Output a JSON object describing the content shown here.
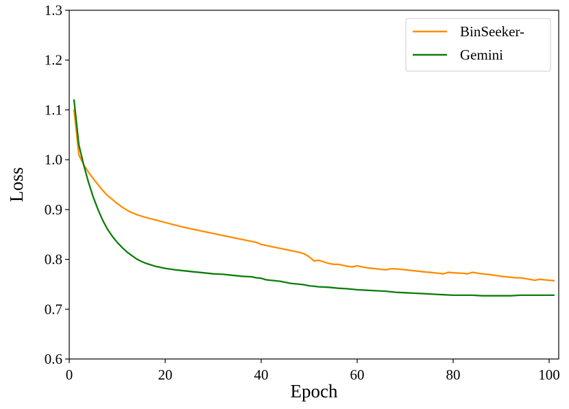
{
  "chart_data": {
    "type": "line",
    "title": "",
    "xlabel": "Epoch",
    "ylabel": "Loss",
    "xlim": [
      0,
      102
    ],
    "ylim": [
      0.6,
      1.3
    ],
    "xticks": [
      0,
      20,
      40,
      60,
      80,
      100
    ],
    "yticks": [
      0.6,
      0.7,
      0.8,
      0.9,
      1.0,
      1.1,
      1.2,
      1.3
    ],
    "xtick_labels": [
      "0",
      "20",
      "40",
      "60",
      "80",
      "100"
    ],
    "ytick_labels": [
      "0.6",
      "0.7",
      "0.8",
      "0.9",
      "1.0",
      "1.1",
      "1.2",
      "1.3"
    ],
    "grid": false,
    "legend_position": "top-right",
    "series": [
      {
        "name": "BinSeeker-",
        "color": "#ff8c00",
        "x": [
          1,
          2,
          3,
          4,
          5,
          6,
          7,
          8,
          9,
          10,
          11,
          12,
          13,
          14,
          15,
          16,
          18,
          20,
          22,
          24,
          26,
          28,
          30,
          32,
          34,
          36,
          38,
          39,
          40,
          42,
          44,
          46,
          48,
          49,
          50,
          51,
          52,
          53,
          54,
          55,
          56,
          57,
          58,
          59,
          60,
          61,
          62,
          63,
          64,
          65,
          66,
          67,
          68,
          70,
          72,
          74,
          76,
          77,
          78,
          79,
          80,
          82,
          83,
          84,
          86,
          88,
          90,
          92,
          93,
          94,
          96,
          97,
          98,
          100,
          101
        ],
        "y": [
          1.1,
          1.01,
          0.99,
          0.975,
          0.962,
          0.95,
          0.938,
          0.928,
          0.92,
          0.912,
          0.905,
          0.899,
          0.894,
          0.89,
          0.887,
          0.884,
          0.879,
          0.874,
          0.869,
          0.864,
          0.86,
          0.856,
          0.852,
          0.848,
          0.844,
          0.84,
          0.836,
          0.834,
          0.83,
          0.826,
          0.822,
          0.818,
          0.814,
          0.811,
          0.805,
          0.797,
          0.798,
          0.795,
          0.792,
          0.79,
          0.79,
          0.788,
          0.786,
          0.785,
          0.787,
          0.785,
          0.783,
          0.782,
          0.781,
          0.78,
          0.779,
          0.781,
          0.781,
          0.779,
          0.777,
          0.775,
          0.773,
          0.772,
          0.771,
          0.774,
          0.773,
          0.772,
          0.771,
          0.774,
          0.771,
          0.769,
          0.766,
          0.764,
          0.763,
          0.763,
          0.76,
          0.758,
          0.76,
          0.758,
          0.757
        ]
      },
      {
        "name": "Gemini",
        "color": "#0a7d0a",
        "x": [
          1,
          2,
          3,
          4,
          5,
          6,
          7,
          8,
          9,
          10,
          11,
          12,
          13,
          14,
          15,
          16,
          17,
          18,
          19,
          20,
          22,
          24,
          26,
          28,
          30,
          32,
          34,
          36,
          38,
          39,
          40,
          41,
          42,
          44,
          45,
          46,
          48,
          49,
          50,
          52,
          54,
          56,
          58,
          60,
          62,
          64,
          66,
          68,
          70,
          72,
          74,
          76,
          78,
          80,
          82,
          84,
          86,
          88,
          90,
          92,
          94,
          96,
          98,
          100,
          101
        ],
        "y": [
          1.12,
          1.03,
          0.99,
          0.955,
          0.925,
          0.9,
          0.878,
          0.86,
          0.846,
          0.834,
          0.824,
          0.815,
          0.808,
          0.801,
          0.796,
          0.792,
          0.789,
          0.786,
          0.784,
          0.782,
          0.779,
          0.777,
          0.775,
          0.773,
          0.771,
          0.77,
          0.768,
          0.766,
          0.765,
          0.763,
          0.762,
          0.759,
          0.758,
          0.756,
          0.754,
          0.752,
          0.75,
          0.749,
          0.747,
          0.745,
          0.744,
          0.742,
          0.741,
          0.739,
          0.738,
          0.737,
          0.736,
          0.734,
          0.733,
          0.732,
          0.731,
          0.73,
          0.729,
          0.728,
          0.728,
          0.728,
          0.727,
          0.727,
          0.727,
          0.727,
          0.728,
          0.728,
          0.728,
          0.728,
          0.728
        ]
      }
    ]
  }
}
